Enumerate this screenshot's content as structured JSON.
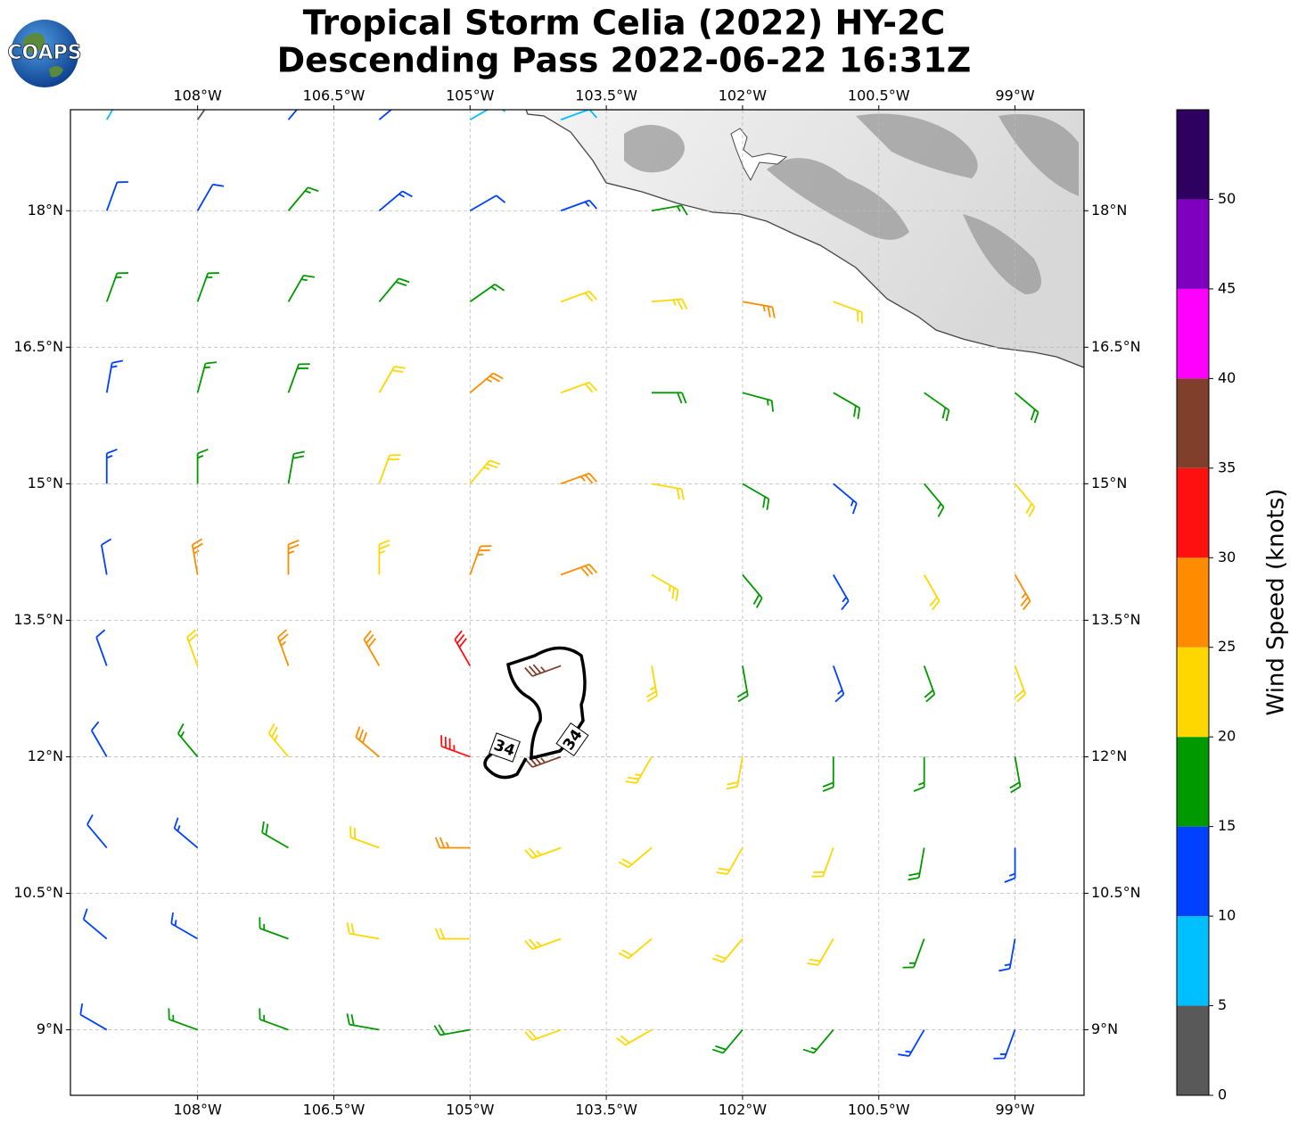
{
  "chart_data": {
    "type": "barbs",
    "title": [
      "Tropical Storm Celia (2022) HY-2C",
      "Descending Pass 2022-06-22 16:31Z"
    ],
    "logo": "COAPS",
    "xlim": [
      -109.4,
      -98.24
    ],
    "ylim": [
      8.28,
      19.11
    ],
    "xticks": [
      {
        "value": -108,
        "label": "108°W"
      },
      {
        "value": -106.5,
        "label": "106.5°W"
      },
      {
        "value": -105,
        "label": "105°W"
      },
      {
        "value": -103.5,
        "label": "103.5°W"
      },
      {
        "value": -102,
        "label": "102°W"
      },
      {
        "value": -100.5,
        "label": "100.5°W"
      },
      {
        "value": -99,
        "label": "99°W"
      }
    ],
    "yticks": [
      {
        "value": 18,
        "label": "18°N"
      },
      {
        "value": 16.5,
        "label": "16.5°N"
      },
      {
        "value": 15,
        "label": "15°N"
      },
      {
        "value": 13.5,
        "label": "13.5°N"
      },
      {
        "value": 12,
        "label": "12°N"
      },
      {
        "value": 10.5,
        "label": "10.5°N"
      },
      {
        "value": 9,
        "label": "9°N"
      }
    ],
    "grid": true,
    "contour_level": 34,
    "barbs": {
      "lon": [
        -109,
        -108,
        -107,
        -106,
        -105,
        -104,
        -103,
        -102,
        -101,
        -100,
        -99
      ],
      "lat": [
        19,
        18,
        17,
        16,
        15,
        14,
        13,
        12,
        11,
        10,
        9
      ],
      "speed": [
        [
          7,
          4,
          12,
          11,
          8,
          8,
          null,
          null,
          null,
          null,
          null
        ],
        [
          12,
          12,
          16,
          13,
          12,
          13,
          17,
          null,
          null,
          null,
          null
        ],
        [
          16,
          16,
          17,
          18,
          15,
          22,
          23,
          26,
          22,
          null,
          null
        ],
        [
          13,
          16,
          18,
          21,
          26,
          22,
          18,
          17,
          18,
          18,
          19
        ],
        [
          13,
          16,
          18,
          22,
          23,
          27,
          22,
          18,
          14,
          17,
          22
        ],
        [
          12,
          26,
          27,
          24,
          27,
          28,
          24,
          18,
          14,
          22,
          26
        ],
        [
          12,
          21,
          27,
          29,
          32,
          37,
          24,
          18,
          14,
          18,
          22
        ],
        [
          12,
          17,
          23,
          28,
          33,
          36,
          24,
          21,
          18,
          17,
          18
        ],
        [
          12,
          14,
          18,
          22,
          27,
          24,
          22,
          22,
          21,
          18,
          13
        ],
        [
          12,
          13,
          17,
          21,
          22,
          23,
          22,
          22,
          21,
          17,
          13
        ],
        [
          12,
          16,
          17,
          18,
          19,
          22,
          22,
          18,
          17,
          14,
          13
        ]
      ],
      "direction": [
        [
          30,
          35,
          40,
          50,
          60,
          70,
          null,
          null,
          null,
          null,
          null
        ],
        [
          20,
          30,
          40,
          50,
          60,
          70,
          80,
          null,
          null,
          null,
          null
        ],
        [
          20,
          20,
          30,
          40,
          55,
          70,
          85,
          100,
          110,
          null,
          null
        ],
        [
          10,
          15,
          20,
          30,
          50,
          70,
          90,
          105,
          120,
          125,
          130
        ],
        [
          0,
          0,
          10,
          20,
          40,
          70,
          100,
          120,
          130,
          140,
          140
        ],
        [
          350,
          350,
          0,
          0,
          20,
          70,
          120,
          140,
          150,
          150,
          150
        ],
        [
          340,
          340,
          340,
          330,
          330,
          250,
          170,
          170,
          160,
          160,
          160
        ],
        [
          330,
          320,
          320,
          310,
          290,
          250,
          210,
          190,
          180,
          180,
          170
        ],
        [
          320,
          310,
          300,
          290,
          270,
          250,
          230,
          210,
          200,
          190,
          180
        ],
        [
          310,
          300,
          290,
          280,
          270,
          250,
          230,
          220,
          210,
          200,
          190
        ],
        [
          300,
          290,
          290,
          280,
          260,
          250,
          240,
          220,
          220,
          210,
          200
        ]
      ]
    },
    "colorbar": {
      "label": "Wind Speed (knots)",
      "clim": [
        0,
        55
      ],
      "bounds": [
        0,
        5,
        10,
        15,
        20,
        25,
        30,
        35,
        40,
        45,
        50,
        55
      ],
      "colors": [
        "#595959",
        "#00bfff",
        "#0040ff",
        "#009900",
        "#ffd700",
        "#ff8c00",
        "#ff1010",
        "#7f3f2a",
        "#ff00ff",
        "#8000c0",
        "#2e0060"
      ],
      "ticks": [
        0,
        5,
        10,
        15,
        20,
        25,
        30,
        35,
        40,
        45,
        50
      ]
    }
  }
}
